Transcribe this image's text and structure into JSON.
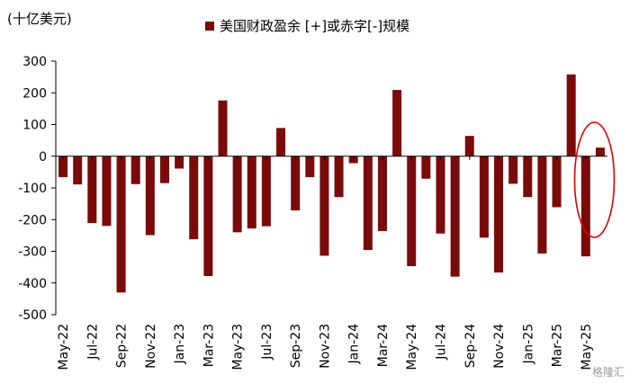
{
  "unit_label": "(十亿美元)",
  "legend_label": "美国财政盈余 [+]或赤字[-]规模",
  "watermark": "格隆汇",
  "colors": {
    "bar": "#7b0a0a",
    "highlight": "#e00000",
    "axis": "#000000"
  },
  "chart_data": {
    "type": "bar",
    "title": "",
    "xlabel": "",
    "ylabel": "(十亿美元)",
    "ylim": [
      -500,
      300
    ],
    "yticks": [
      -500,
      -400,
      -300,
      -200,
      -100,
      0,
      100,
      200,
      300
    ],
    "legend_position": "top-center",
    "grid": false,
    "categories": [
      "May-22",
      "Jun-22",
      "Jul-22",
      "Aug-22",
      "Sep-22",
      "Oct-22",
      "Nov-22",
      "Dec-22",
      "Jan-23",
      "Feb-23",
      "Mar-23",
      "Apr-23",
      "May-23",
      "Jun-23",
      "Jul-23",
      "Aug-23",
      "Sep-23",
      "Oct-23",
      "Nov-23",
      "Dec-23",
      "Jan-24",
      "Feb-24",
      "Mar-24",
      "Apr-24",
      "May-24",
      "Jun-24",
      "Jul-24",
      "Aug-24",
      "Sep-24",
      "Oct-24",
      "Nov-24",
      "Dec-24",
      "Jan-25",
      "Feb-25",
      "Mar-25",
      "Apr-25",
      "May-25",
      "Jun-25"
    ],
    "tick_labels": [
      "May-22",
      "Jul-22",
      "Sep-22",
      "Nov-22",
      "Jan-23",
      "Mar-23",
      "May-23",
      "Jul-23",
      "Sep-23",
      "Nov-23",
      "Jan-24",
      "Mar-24",
      "May-24",
      "Jul-24",
      "Sep-24",
      "Nov-24",
      "Jan-25",
      "Mar-25",
      "May-25"
    ],
    "series": [
      {
        "name": "美国财政盈余 [+]或赤字[-]规模",
        "values": [
          -66,
          -89,
          -211,
          -220,
          -430,
          -88,
          -249,
          -85,
          -39,
          -262,
          -378,
          176,
          -240,
          -228,
          -221,
          89,
          -171,
          -66,
          -314,
          -129,
          -22,
          -296,
          -236,
          209,
          -347,
          -71,
          -244,
          -380,
          64,
          -257,
          -367,
          -87,
          -129,
          -307,
          -161,
          258,
          -316,
          27
        ]
      }
    ],
    "annotation": {
      "type": "circle",
      "target": "Jun-25"
    }
  }
}
